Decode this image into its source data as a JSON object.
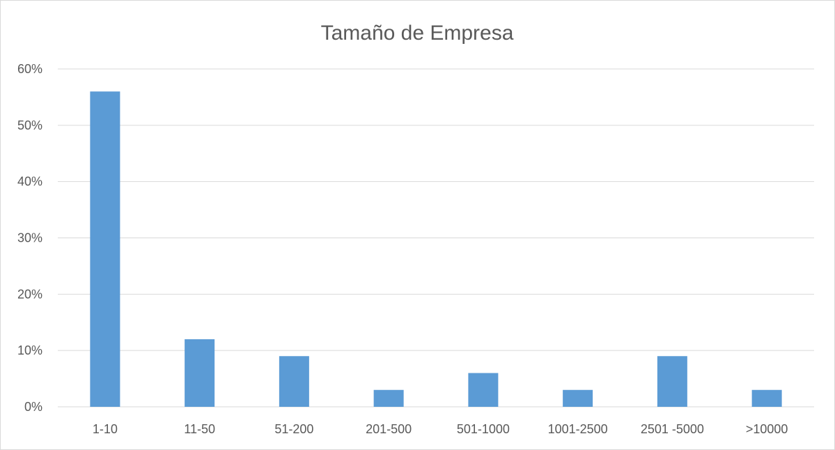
{
  "chart_data": {
    "type": "bar",
    "title": "Tamaño de Empresa",
    "xlabel": "",
    "ylabel": "",
    "categories": [
      "1-10",
      "11-50",
      "51-200",
      "201-500",
      "501-1000",
      "1001-2500",
      "2501 -5000",
      ">10000"
    ],
    "values": [
      0.56,
      0.12,
      0.09,
      0.03,
      0.06,
      0.03,
      0.09,
      0.03
    ],
    "ylim": [
      0,
      0.6
    ],
    "yticks": [
      0,
      0.1,
      0.2,
      0.3,
      0.4,
      0.5,
      0.6
    ],
    "ytick_labels": [
      "0%",
      "10%",
      "20%",
      "30%",
      "40%",
      "50%",
      "60%"
    ],
    "grid": true,
    "legend": "none",
    "bar_color": "#5b9bd5"
  }
}
